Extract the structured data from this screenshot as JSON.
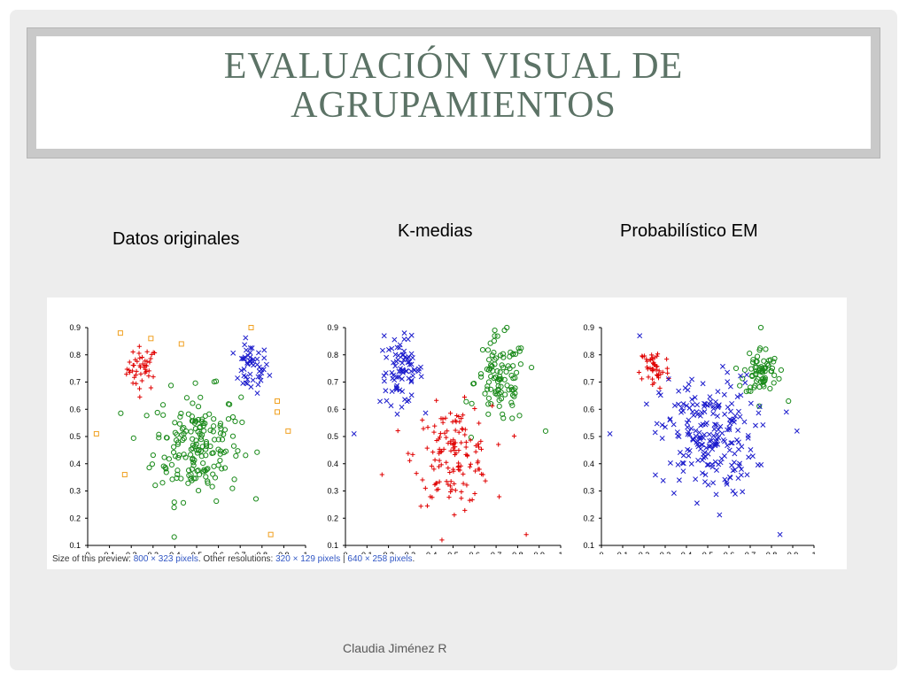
{
  "slide": {
    "title_line1": "EVALUACIÓN VISUAL DE",
    "title_line2": "AGRUPAMIENTOS",
    "label_original": "Datos originales",
    "label_kmeans": "K-medias",
    "label_em": "Probabilístico EM",
    "footer": "Claudia Jiménez R"
  },
  "caption": {
    "prefix": "Size of this preview: ",
    "preview_size": "800 × 323 pixels",
    "middle": ". Other resolutions: ",
    "res1": "320 × 129 pixels",
    "sep": " | ",
    "res2": "640 × 258 pixels",
    "end": "."
  },
  "colors": {
    "red": "#e00000",
    "green": "#1a8a1a",
    "blue": "#1a1acc",
    "orange": "#f0a020"
  },
  "chart_data": [
    {
      "type": "scatter",
      "xlim": [
        0,
        1
      ],
      "ylim": [
        0.1,
        0.9
      ],
      "xticks": [
        "0",
        "0.1",
        "0.2",
        "0.3",
        "0.4",
        "0.5",
        "0.6",
        "0.7",
        "0.8",
        "0.9",
        "1"
      ],
      "yticks": [
        "0.1",
        "0.2",
        "0.3",
        "0.4",
        "0.5",
        "0.6",
        "0.7",
        "0.8",
        "0.9"
      ],
      "grid": false,
      "series": [
        {
          "color": "red",
          "marker": "plus",
          "cluster": {
            "cx": 0.25,
            "cy": 0.75,
            "sx": 0.035,
            "sy": 0.04,
            "n": 45
          }
        },
        {
          "color": "blue",
          "marker": "x",
          "cluster": {
            "cx": 0.75,
            "cy": 0.75,
            "sx": 0.04,
            "sy": 0.045,
            "n": 50
          }
        },
        {
          "color": "green",
          "marker": "circle",
          "cluster": {
            "cx": 0.5,
            "cy": 0.47,
            "sx": 0.1,
            "sy": 0.1,
            "n": 180
          }
        },
        {
          "color": "orange",
          "marker": "square",
          "points": [
            [
              0.15,
              0.88
            ],
            [
              0.29,
              0.86
            ],
            [
              0.43,
              0.84
            ],
            [
              0.75,
              0.9
            ],
            [
              0.87,
              0.63
            ],
            [
              0.87,
              0.59
            ],
            [
              0.92,
              0.52
            ],
            [
              0.04,
              0.51
            ],
            [
              0.17,
              0.36
            ],
            [
              0.84,
              0.14
            ]
          ]
        }
      ]
    },
    {
      "type": "scatter",
      "xlim": [
        0,
        1
      ],
      "ylim": [
        0.1,
        0.9
      ],
      "xticks": [
        "0",
        "0.1",
        "0.2",
        "0.3",
        "0.4",
        "0.5",
        "0.6",
        "0.7",
        "0.8",
        "0.9",
        "1"
      ],
      "yticks": [
        "0.1",
        "0.2",
        "0.3",
        "0.4",
        "0.5",
        "0.6",
        "0.7",
        "0.8",
        "0.9"
      ],
      "grid": false,
      "series": [
        {
          "color": "blue",
          "marker": "x",
          "cluster": {
            "cx": 0.26,
            "cy": 0.74,
            "sx": 0.05,
            "sy": 0.06,
            "n": 80
          }
        },
        {
          "color": "green",
          "marker": "circle",
          "cluster": {
            "cx": 0.72,
            "cy": 0.7,
            "sx": 0.06,
            "sy": 0.08,
            "n": 100
          }
        },
        {
          "color": "red",
          "marker": "plus",
          "cluster": {
            "cx": 0.5,
            "cy": 0.43,
            "sx": 0.09,
            "sy": 0.09,
            "n": 140
          }
        },
        {
          "color": "blue",
          "marker": "x",
          "points": [
            [
              0.04,
              0.51
            ],
            [
              0.18,
              0.87
            ]
          ]
        },
        {
          "color": "red",
          "marker": "plus",
          "points": [
            [
              0.17,
              0.36
            ],
            [
              0.84,
              0.14
            ]
          ]
        },
        {
          "color": "green",
          "marker": "circle",
          "points": [
            [
              0.75,
              0.9
            ],
            [
              0.93,
              0.52
            ]
          ]
        }
      ]
    },
    {
      "type": "scatter",
      "xlim": [
        0,
        1
      ],
      "ylim": [
        0.1,
        0.9
      ],
      "xticks": [
        "0",
        "0.1",
        "0.2",
        "0.3",
        "0.4",
        "0.5",
        "0.6",
        "0.7",
        "0.8",
        "0.9",
        "1"
      ],
      "yticks": [
        "0.1",
        "0.2",
        "0.3",
        "0.4",
        "0.5",
        "0.6",
        "0.7",
        "0.8",
        "0.9"
      ],
      "grid": false,
      "series": [
        {
          "color": "red",
          "marker": "plus",
          "cluster": {
            "cx": 0.25,
            "cy": 0.75,
            "sx": 0.035,
            "sy": 0.04,
            "n": 45
          }
        },
        {
          "color": "green",
          "marker": "circle",
          "cluster": {
            "cx": 0.75,
            "cy": 0.74,
            "sx": 0.04,
            "sy": 0.045,
            "n": 70
          }
        },
        {
          "color": "blue",
          "marker": "x",
          "cluster": {
            "cx": 0.5,
            "cy": 0.5,
            "sx": 0.11,
            "sy": 0.11,
            "n": 220
          }
        },
        {
          "color": "blue",
          "marker": "x",
          "points": [
            [
              0.04,
              0.51
            ],
            [
              0.18,
              0.87
            ],
            [
              0.84,
              0.14
            ],
            [
              0.92,
              0.52
            ],
            [
              0.87,
              0.59
            ]
          ]
        },
        {
          "color": "green",
          "marker": "circle",
          "points": [
            [
              0.75,
              0.9
            ],
            [
              0.88,
              0.63
            ]
          ]
        }
      ]
    }
  ]
}
